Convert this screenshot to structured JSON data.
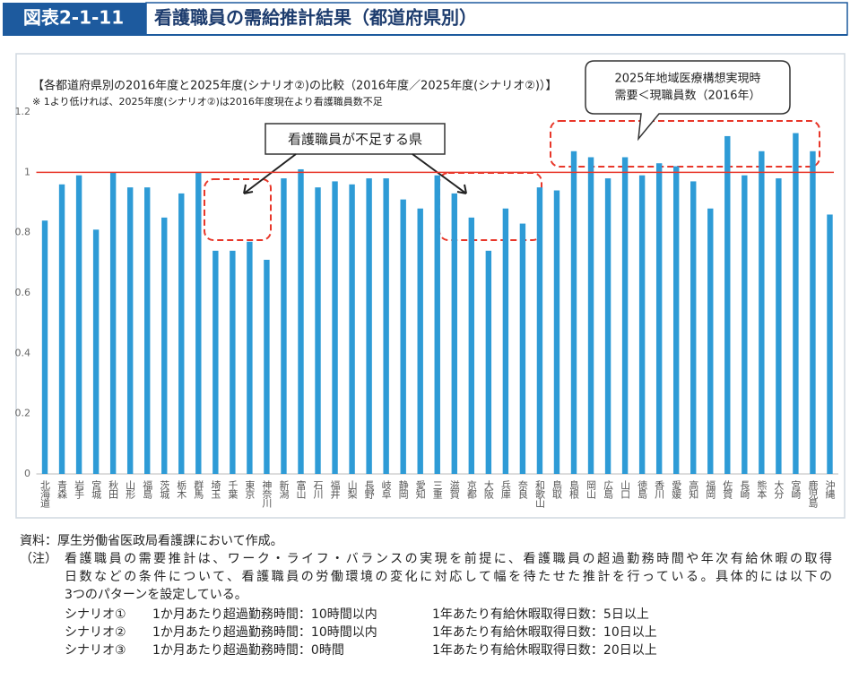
{
  "header": {
    "label": "図表2-1-11",
    "title": "看護職員の需給推計結果（都道府県別）"
  },
  "chart_data": {
    "type": "bar",
    "subtitle": "【各都道府県別の2016年度と2025年度(シナリオ②)の比較（2016年度／2025年度(シナリオ②)）】",
    "note": "※ 1より低ければ、2025年度(シナリオ②)は2016年度現在より看護職員数不足",
    "categories": [
      "北海道",
      "青森",
      "岩手",
      "宮城",
      "秋田",
      "山形",
      "福島",
      "茨城",
      "栃木",
      "群馬",
      "埼玉",
      "千葉",
      "東京",
      "神奈川",
      "新潟",
      "富山",
      "石川",
      "福井",
      "山梨",
      "長野",
      "岐阜",
      "静岡",
      "愛知",
      "三重",
      "滋賀",
      "京都",
      "大阪",
      "兵庫",
      "奈良",
      "和歌山",
      "鳥取",
      "島根",
      "岡山",
      "広島",
      "山口",
      "徳島",
      "香川",
      "愛媛",
      "高知",
      "福岡",
      "佐賀",
      "長崎",
      "熊本",
      "大分",
      "宮崎",
      "鹿児島",
      "沖縄"
    ],
    "values": [
      0.84,
      0.96,
      0.99,
      0.81,
      1.0,
      0.95,
      0.95,
      0.85,
      0.93,
      1.0,
      0.74,
      0.74,
      0.77,
      0.71,
      0.98,
      1.01,
      0.95,
      0.97,
      0.96,
      0.98,
      0.98,
      0.91,
      0.88,
      0.99,
      0.93,
      0.85,
      0.74,
      0.88,
      0.83,
      0.95,
      0.94,
      1.07,
      1.05,
      0.98,
      1.05,
      0.99,
      1.03,
      1.02,
      0.97,
      0.88,
      1.12,
      0.99,
      1.07,
      0.98,
      1.13,
      1.07,
      0.86
    ],
    "color": "#2e9bd6",
    "reference_line": 1,
    "reference_color": "#e8372a",
    "ylim": [
      0,
      1.2
    ],
    "yticks": [
      0,
      0.2,
      0.4,
      0.6,
      0.8,
      1,
      1.2
    ],
    "annotations": [
      {
        "lines": [
          "看護職員が不足する県"
        ]
      },
      {
        "lines": [
          "2025年地域医療構想実現時",
          "需要＜現職員数（2016年）"
        ]
      }
    ]
  },
  "notes": {
    "source": "資料：厚生労働省医政局看護課において作成。",
    "note_label": "（注）",
    "note_lines": [
      "看護職員の需要推計は、ワーク・ライフ・バランスの実現を前提に、看護職員の超過勤務時間や年次有給休暇の取得",
      "日数などの条件について、看護職員の労働環境の変化に対応して幅を待たせた推計を行っている。具体的には以下の",
      "3つのパターンを設定している。"
    ],
    "scenarios": [
      [
        "シナリオ①",
        "1か月あたり超過勤務時間：10時間以内",
        "1年あたり有給休暇取得日数：5日以上"
      ],
      [
        "シナリオ②",
        "1か月あたり超過勤務時間：10時間以内",
        "1年あたり有給休暇取得日数：10日以上"
      ],
      [
        "シナリオ③",
        "1か月あたり超過勤務時間：0時間",
        "1年あたり有給休暇取得日数：20日以上"
      ]
    ]
  }
}
